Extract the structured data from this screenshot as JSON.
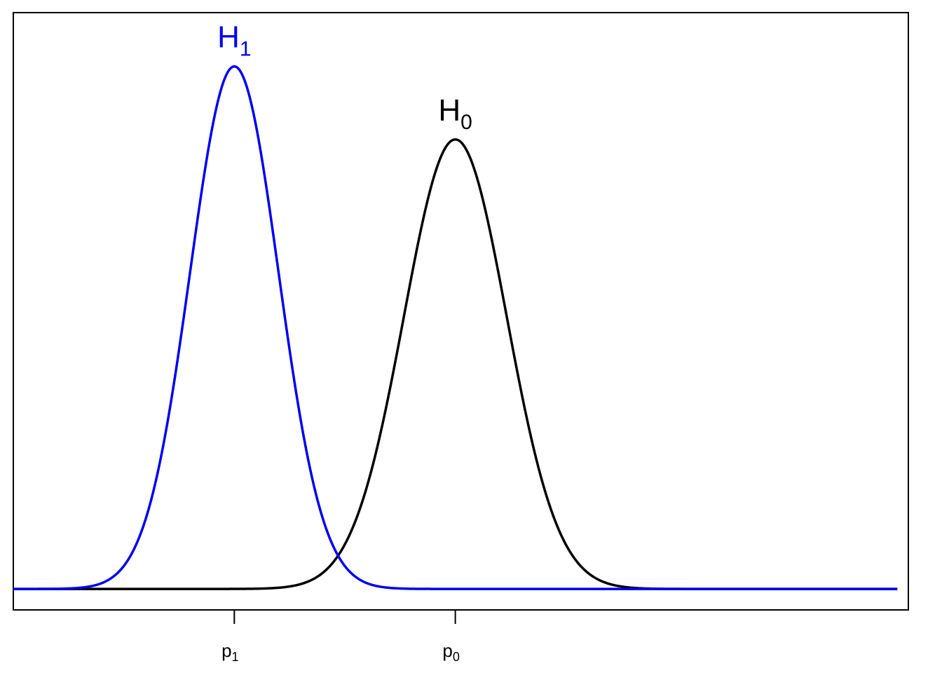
{
  "chart_data": {
    "type": "line",
    "title": "",
    "xlabel": "",
    "ylabel": "",
    "xlim": [
      -4.0,
      12.2
    ],
    "ylim": [
      -0.02,
      0.55
    ],
    "x_ticks": [
      {
        "x": 0,
        "base": "p",
        "sub": "1"
      },
      {
        "x": 4,
        "base": "p",
        "sub": "0"
      }
    ],
    "series": [
      {
        "name": "H1",
        "mean": 0,
        "sd": 0.8,
        "color": "#0000ee",
        "label_base": "H",
        "label_sub": "1"
      },
      {
        "name": "H0",
        "mean": 4,
        "sd": 0.93,
        "color": "#000000",
        "label_base": "H",
        "label_sub": "0"
      }
    ],
    "grid": false,
    "legend": "none"
  }
}
